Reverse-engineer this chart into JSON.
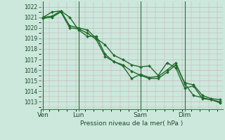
{
  "title": "",
  "xlabel": "Pression niveau de la mer( hPa )",
  "ylabel": "",
  "bg_color": "#cce8dc",
  "grid_color": "#c8a8b8",
  "vline_color": "#2d6e3a",
  "line_color": "#1e6b2a",
  "markersize": 2.0,
  "linewidth": 1.0,
  "ylim": [
    1012.3,
    1022.5
  ],
  "yticks": [
    1013,
    1014,
    1015,
    1016,
    1017,
    1018,
    1019,
    1020,
    1021,
    1022
  ],
  "day_labels": [
    "Ven",
    "Lun",
    "Sam",
    "Dim"
  ],
  "series1_x": [
    0,
    1,
    2,
    3,
    4,
    5,
    6,
    7,
    8,
    9,
    10,
    11,
    12,
    13,
    14,
    15,
    16,
    17,
    18,
    19,
    20
  ],
  "series1": [
    1021.0,
    1021.1,
    1021.6,
    1021.0,
    1019.8,
    1019.2,
    1019.2,
    1017.5,
    1016.8,
    1016.5,
    1015.9,
    1015.5,
    1015.2,
    1015.2,
    1015.8,
    1016.5,
    1014.8,
    1014.6,
    1013.6,
    1013.3,
    1013.2
  ],
  "series2": [
    1020.9,
    1021.0,
    1021.5,
    1020.0,
    1019.9,
    1019.5,
    1018.9,
    1017.3,
    1016.8,
    1016.4,
    1015.2,
    1015.6,
    1015.3,
    1015.4,
    1016.0,
    1016.7,
    1014.7,
    1013.6,
    1013.4,
    1013.2,
    1012.9
  ],
  "series3": [
    1021.0,
    1021.5,
    1021.6,
    1020.2,
    1020.0,
    1019.8,
    1019.0,
    1018.4,
    1017.4,
    1017.0,
    1016.5,
    1016.3,
    1016.4,
    1015.5,
    1016.7,
    1016.2,
    1014.3,
    1014.5,
    1013.3,
    1013.2,
    1013.0
  ]
}
